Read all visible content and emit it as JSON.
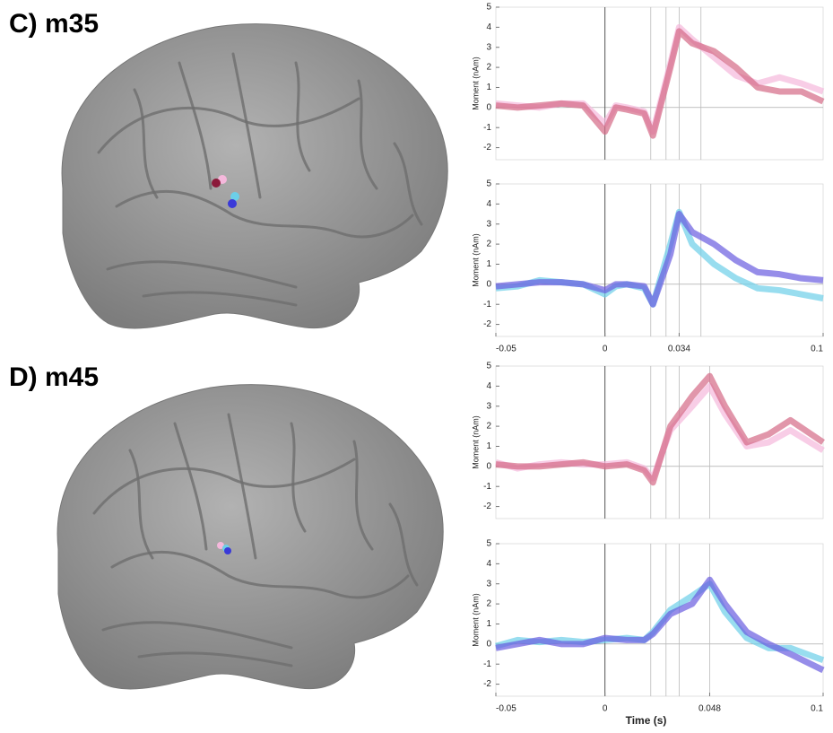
{
  "panels": [
    {
      "label": "C) m35"
    },
    {
      "label": "D) m45"
    }
  ],
  "chart_data": [
    {
      "type": "line",
      "ylabel": "Moment (nAm)",
      "xlim": [
        -0.05,
        0.1
      ],
      "ylim": [
        -2.6,
        5
      ],
      "yticks": [
        -2,
        -1,
        0,
        1,
        2,
        3,
        4,
        5
      ],
      "vlines": [
        0,
        0.021,
        0.028,
        0.034,
        0.044
      ],
      "x": [
        -0.05,
        -0.04,
        -0.03,
        -0.02,
        -0.01,
        0,
        0.005,
        0.01,
        0.018,
        0.022,
        0.03,
        0.034,
        0.04,
        0.05,
        0.06,
        0.07,
        0.08,
        0.09,
        0.1
      ],
      "series": [
        {
          "color": "#f5b8dc",
          "values": [
            0.2,
            0.1,
            0,
            0.2,
            0.2,
            -0.8,
            0.1,
            0,
            -0.2,
            -1.2,
            2.2,
            4,
            3.4,
            2.5,
            1.6,
            1.2,
            1.5,
            1.2,
            0.8
          ]
        },
        {
          "color": "#d46a86",
          "values": [
            0.1,
            0,
            0.1,
            0.2,
            0.1,
            -1.2,
            0,
            -0.1,
            -0.3,
            -1.4,
            2,
            3.8,
            3.2,
            2.8,
            2,
            1,
            0.8,
            0.8,
            0.3
          ]
        }
      ]
    },
    {
      "type": "line",
      "ylabel": "Moment (nAm)",
      "xlim": [
        -0.05,
        0.1
      ],
      "ylim": [
        -2.6,
        5
      ],
      "yticks": [
        -2,
        -1,
        0,
        1,
        2,
        3,
        4,
        5
      ],
      "xticks": [
        -0.05,
        0,
        0.034,
        0.1
      ],
      "vlines": [
        0,
        0.021,
        0.028,
        0.034,
        0.044
      ],
      "x": [
        -0.05,
        -0.04,
        -0.03,
        -0.02,
        -0.01,
        0,
        0.005,
        0.01,
        0.018,
        0.022,
        0.03,
        0.034,
        0.04,
        0.05,
        0.06,
        0.07,
        0.08,
        0.09,
        0.1
      ],
      "series": [
        {
          "color": "#6ccfe8",
          "values": [
            -0.2,
            -0.1,
            0.2,
            0.1,
            0,
            -0.5,
            -0.1,
            0,
            -0.2,
            -1,
            2,
            3.6,
            2,
            1,
            0.3,
            -0.2,
            -0.3,
            -0.5,
            -0.7
          ]
        },
        {
          "color": "#6a5ce0",
          "values": [
            -0.1,
            0,
            0.1,
            0.1,
            0,
            -0.3,
            0,
            0,
            -0.1,
            -1,
            1.5,
            3.5,
            2.6,
            2,
            1.2,
            0.6,
            0.5,
            0.3,
            0.2
          ]
        }
      ]
    },
    {
      "type": "line",
      "ylabel": "Moment (nAm)",
      "xlim": [
        -0.05,
        0.1
      ],
      "ylim": [
        -2.6,
        5
      ],
      "yticks": [
        -2,
        -1,
        0,
        1,
        2,
        3,
        4,
        5
      ],
      "vlines": [
        0,
        0.021,
        0.028,
        0.034,
        0.048
      ],
      "x": [
        -0.05,
        -0.04,
        -0.03,
        -0.02,
        -0.01,
        0,
        0.01,
        0.018,
        0.022,
        0.03,
        0.04,
        0.048,
        0.055,
        0.065,
        0.075,
        0.085,
        0.1
      ],
      "series": [
        {
          "color": "#f5b8dc",
          "values": [
            0.2,
            -0.1,
            0.1,
            0.2,
            0.1,
            0.1,
            0.2,
            -0.1,
            -0.6,
            1.8,
            3,
            4,
            2.6,
            1,
            1.2,
            1.8,
            0.8
          ]
        },
        {
          "color": "#d46a86",
          "values": [
            0.1,
            0,
            0,
            0.1,
            0.2,
            0,
            0.1,
            -0.2,
            -0.8,
            2,
            3.5,
            4.5,
            3,
            1.2,
            1.6,
            2.3,
            1.2
          ]
        }
      ]
    },
    {
      "type": "line",
      "ylabel": "Moment (nAm)",
      "xlabel": "Time (s)",
      "xlim": [
        -0.05,
        0.1
      ],
      "ylim": [
        -2.6,
        5
      ],
      "yticks": [
        -2,
        -1,
        0,
        1,
        2,
        3,
        4,
        5
      ],
      "xticks": [
        -0.05,
        0,
        0.048,
        0.1
      ],
      "vlines": [
        0,
        0.021,
        0.028,
        0.034,
        0.048
      ],
      "x": [
        -0.05,
        -0.04,
        -0.03,
        -0.02,
        -0.01,
        0,
        0.01,
        0.018,
        0.022,
        0.03,
        0.04,
        0.048,
        0.055,
        0.065,
        0.075,
        0.085,
        0.1
      ],
      "series": [
        {
          "color": "#6ccfe8",
          "values": [
            -0.1,
            0.2,
            0.1,
            0.2,
            0.1,
            0.2,
            0.3,
            0.2,
            0.6,
            1.7,
            2.4,
            3,
            1.6,
            0.3,
            -0.2,
            -0.2,
            -0.8
          ]
        },
        {
          "color": "#6a5ce0",
          "values": [
            -0.2,
            0,
            0.2,
            0,
            0,
            0.3,
            0.2,
            0.2,
            0.5,
            1.5,
            2,
            3.2,
            2,
            0.6,
            0,
            -0.5,
            -1.3
          ]
        }
      ]
    }
  ]
}
